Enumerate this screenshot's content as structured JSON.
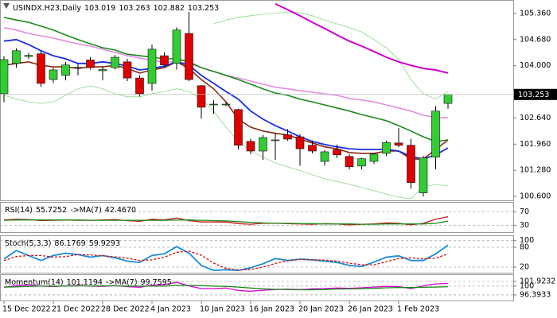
{
  "chart_data": [
    {
      "type": "candlestick",
      "title": "USINDX.H23,Daily",
      "categories": [
        "15 Dec 2022",
        null,
        null,
        null,
        "21 Dec 2022",
        null,
        null,
        null,
        "28 Dec 2022",
        null,
        null,
        null,
        "4 Jan 2023",
        null,
        null,
        null,
        "10 Jan 2023",
        null,
        null,
        null,
        "16 Jan 2023",
        null,
        null,
        null,
        "20 Jan 2023",
        null,
        null,
        null,
        "26 Jan 2023",
        null,
        null,
        null,
        "1 Feb 2023",
        null,
        null,
        null,
        null
      ],
      "open": [
        103.27,
        104.06,
        104.24,
        104.31,
        103.64,
        103.75,
        103.94,
        104.15,
        103.87,
        103.95,
        104.1,
        103.68,
        103.54,
        104.26,
        104.06,
        104.84,
        103.48,
        103.0,
        103.0,
        102.86,
        102.03,
        101.78,
        102.07,
        102.2,
        102.15,
        101.93,
        101.51,
        101.82,
        101.64,
        101.39,
        101.51,
        101.72,
        101.99,
        101.93,
        100.69,
        101.62,
        103.019
      ],
      "high": [
        104.25,
        104.45,
        104.33,
        104.38,
        103.95,
        104.1,
        104.05,
        104.22,
        103.98,
        104.28,
        104.18,
        103.75,
        104.55,
        104.35,
        105.0,
        105.4,
        103.5,
        103.1,
        103.05,
        102.88,
        102.1,
        102.2,
        102.25,
        102.35,
        102.22,
        102.05,
        101.8,
        101.95,
        101.7,
        101.6,
        101.72,
        102.05,
        102.38,
        102.1,
        101.65,
        102.95,
        103.263
      ],
      "low": [
        103.05,
        103.95,
        104.18,
        103.45,
        103.55,
        103.62,
        103.75,
        103.9,
        103.62,
        103.9,
        103.6,
        103.2,
        103.35,
        103.98,
        103.9,
        103.6,
        102.62,
        102.75,
        102.95,
        101.82,
        101.7,
        101.55,
        101.55,
        102.05,
        101.4,
        101.72,
        101.4,
        101.6,
        101.3,
        101.3,
        101.45,
        101.65,
        101.88,
        100.8,
        100.6,
        101.3,
        102.882
      ],
      "close": [
        104.16,
        104.39,
        104.27,
        103.54,
        103.89,
        104.02,
        103.96,
        103.95,
        103.9,
        104.22,
        103.68,
        103.27,
        104.43,
        104.02,
        104.93,
        103.64,
        102.92,
        103.0,
        103.0,
        101.93,
        101.78,
        102.13,
        102.07,
        102.09,
        101.84,
        101.78,
        101.76,
        101.68,
        101.37,
        101.58,
        101.7,
        102.0,
        101.93,
        100.96,
        101.6,
        102.82,
        103.253
      ],
      "up_color": "#33cc33",
      "down_color": "#e00000",
      "series": [
        {
          "color": "#88d888",
          "width": 0.8,
          "values": [
            null,
            null,
            null,
            null,
            null,
            null,
            null,
            null,
            null,
            null,
            null,
            null,
            null,
            null,
            null,
            null,
            null,
            105.09,
            105.19,
            105.26,
            105.3,
            105.34,
            105.36,
            105.4,
            105.38,
            105.3,
            105.19,
            105.09,
            104.99,
            104.88,
            104.68,
            104.47,
            104.16,
            103.64,
            103.27,
            103.13,
            103.33
          ]
        },
        {
          "color": "#88d888",
          "width": 0.8,
          "values": [
            103.23,
            103.13,
            103.06,
            103.02,
            103.06,
            103.23,
            103.4,
            103.48,
            103.4,
            103.27,
            103.19,
            103.19,
            103.27,
            103.33,
            103.4,
            103.33,
            103.13,
            102.82,
            102.4,
            102.03,
            101.78,
            101.62,
            101.47,
            101.37,
            101.27,
            101.16,
            101.06,
            100.99,
            100.91,
            100.83,
            100.75,
            100.66,
            100.58,
            100.54,
            100.85,
            100.91,
            100.87
          ]
        },
        {
          "color": "#e58be5",
          "width": 1.6,
          "values": [
            104.99,
            104.93,
            104.84,
            104.78,
            104.72,
            104.64,
            104.57,
            104.51,
            104.43,
            104.35,
            104.26,
            104.2,
            104.14,
            104.1,
            104.1,
            104.06,
            103.95,
            103.85,
            103.75,
            103.68,
            103.6,
            103.52,
            103.44,
            103.4,
            103.35,
            103.31,
            103.27,
            103.23,
            103.15,
            103.11,
            103.06,
            102.98,
            102.9,
            102.82,
            102.71,
            102.65,
            102.65
          ]
        },
        {
          "color": "#cc00cc",
          "width": 2,
          "values": [
            null,
            null,
            null,
            null,
            null,
            null,
            null,
            null,
            null,
            null,
            null,
            null,
            null,
            null,
            null,
            null,
            null,
            null,
            null,
            null,
            null,
            null,
            105.61,
            105.46,
            105.3,
            105.13,
            104.97,
            104.8,
            104.64,
            104.51,
            104.37,
            104.22,
            104.1,
            104.01,
            103.93,
            103.89,
            103.81
          ]
        },
        {
          "color": "#1a8a1a",
          "width": 1.6,
          "values": [
            105.26,
            105.19,
            105.13,
            105.03,
            104.93,
            104.8,
            104.68,
            104.57,
            104.47,
            104.41,
            104.3,
            104.26,
            104.22,
            104.18,
            104.18,
            104.1,
            103.95,
            103.85,
            103.75,
            103.64,
            103.52,
            103.4,
            103.29,
            103.23,
            103.13,
            103.06,
            102.98,
            102.9,
            102.82,
            102.73,
            102.65,
            102.57,
            102.44,
            102.3,
            102.15,
            102.03,
            102.07
          ]
        },
        {
          "color": "#8b2a14",
          "width": 1.6,
          "values": [
            104.01,
            104.06,
            104.1,
            104.01,
            103.97,
            103.97,
            103.93,
            103.97,
            103.97,
            104.01,
            103.93,
            103.81,
            103.89,
            103.95,
            104.1,
            103.93,
            103.64,
            103.4,
            103.06,
            102.61,
            102.4,
            102.3,
            102.24,
            102.2,
            102.09,
            101.99,
            101.89,
            101.84,
            101.74,
            101.72,
            101.72,
            101.78,
            101.78,
            101.57,
            101.57,
            101.82,
            102.07
          ]
        },
        {
          "color": "#1a2ee0",
          "width": 1.8,
          "values": [
            104.64,
            104.68,
            104.55,
            104.39,
            104.26,
            104.18,
            104.06,
            104.06,
            104.1,
            104.06,
            103.99,
            103.89,
            103.93,
            103.99,
            104.1,
            104.01,
            103.75,
            103.54,
            103.33,
            103.13,
            102.82,
            102.61,
            102.44,
            102.3,
            102.15,
            102.03,
            101.95,
            101.89,
            101.84,
            101.82,
            101.82,
            101.82,
            101.78,
            101.64,
            101.57,
            101.68,
            101.86
          ]
        }
      ],
      "ylim": [
        100.497,
        105.669
      ],
      "yticks": [
        {
          "value": 105.36,
          "label": "105.360"
        },
        {
          "value": 104.68,
          "label": "104.680"
        },
        {
          "value": 104.0,
          "label": "104.000"
        },
        {
          "value": 102.64,
          "label": "102.640"
        },
        {
          "value": 101.96,
          "label": "101.960"
        },
        {
          "value": 101.28,
          "label": "101.280"
        },
        {
          "value": 100.6,
          "label": "100.600"
        }
      ],
      "grid": false
    },
    {
      "type": "line",
      "title": "RSI(14)",
      "series": [
        {
          "color": "#c81414",
          "values": [
            46,
            48,
            47,
            44,
            45,
            46,
            45,
            45,
            46,
            47,
            44,
            42,
            48,
            46,
            52,
            44,
            40,
            40,
            40,
            35,
            33,
            36,
            36,
            35,
            34,
            33,
            35,
            34,
            31,
            33,
            34,
            37,
            36,
            31,
            36,
            48,
            55.7252
          ]
        },
        {
          "name": "->MA(7)",
          "color": "#1a8a1a",
          "values": [
            45,
            46,
            46,
            46,
            46,
            46,
            46,
            45,
            45,
            45,
            45,
            45,
            45,
            45,
            46,
            46,
            45,
            44,
            43,
            41,
            39,
            37,
            36,
            36,
            35,
            35,
            34,
            34,
            34,
            33,
            33,
            34,
            34,
            34,
            34,
            36,
            42.467
          ],
          "value_labels": [
            null,
            null,
            null,
            null,
            null,
            null,
            null,
            null,
            null,
            null,
            null,
            null,
            null,
            null,
            null,
            null,
            null,
            null,
            null,
            null,
            null,
            null,
            null,
            null,
            null,
            null,
            null,
            null,
            null,
            null,
            null,
            null,
            null,
            null,
            null,
            null,
            "42.4670"
          ]
        }
      ],
      "ylim": [
        9.4,
        95.3
      ],
      "yticks": [
        70,
        30
      ],
      "grid": "dashed"
    },
    {
      "type": "line",
      "title": "Stoch(5,3,3)",
      "series": [
        {
          "color": "#1a8ad8",
          "width": 1.8,
          "values": [
            45,
            70,
            55,
            40,
            55,
            62,
            58,
            50,
            55,
            48,
            38,
            34,
            55,
            60,
            82,
            62,
            25,
            10,
            12,
            10,
            18,
            30,
            46,
            40,
            44,
            42,
            38,
            34,
            25,
            22,
            35,
            50,
            54,
            40,
            40,
            60,
            86.1769
          ]
        },
        {
          "color": "#d01010",
          "dashed": true,
          "values": [
            40,
            52,
            55,
            55,
            50,
            52,
            58,
            57,
            54,
            51,
            47,
            40,
            42,
            50,
            65,
            68,
            56,
            32,
            16,
            11,
            13,
            20,
            31,
            39,
            43,
            42,
            41,
            38,
            32,
            27,
            27,
            36,
            46,
            48,
            45,
            47,
            59.9293
          ]
        }
      ],
      "ylim": [
        3.1,
        111.3
      ],
      "yticks": [
        100,
        80,
        20
      ],
      "grid": "dashed"
    },
    {
      "type": "line",
      "title": "Momentum(14)",
      "series": [
        {
          "color": "#d400d4",
          "values": [
            99.5,
            100.2,
            100.5,
            100.0,
            99.8,
            100.1,
            100.3,
            100.0,
            99.9,
            100.2,
            99.8,
            99.5,
            100.4,
            100.6,
            101.6,
            100.1,
            99.0,
            99.0,
            99.2,
            98.2,
            97.9,
            98.3,
            98.6,
            98.8,
            98.6,
            98.9,
            99.0,
            99.2,
            99.1,
            99.3,
            99.6,
            99.9,
            99.8,
            99.0,
            100.1,
            100.9,
            101.1194
          ]
        },
        {
          "name": "->MA(7)",
          "color": "#1a8a1a",
          "values": [
            99.6,
            99.7,
            99.9,
            100.0,
            100.0,
            100.0,
            100.1,
            100.1,
            100.1,
            100.1,
            100.0,
            100.0,
            100.0,
            100.0,
            100.3,
            100.3,
            100.2,
            100.0,
            99.9,
            99.6,
            99.2,
            98.9,
            98.7,
            98.6,
            98.5,
            98.5,
            98.6,
            98.8,
            98.9,
            99.0,
            99.1,
            99.3,
            99.4,
            99.4,
            99.5,
            99.6,
            99.7595
          ]
        }
      ],
      "ylim": [
        94.1,
        104.2
      ],
      "yticks": [
        101.9232,
        100,
        96.3933
      ],
      "grid": "dashed"
    }
  ]
}
